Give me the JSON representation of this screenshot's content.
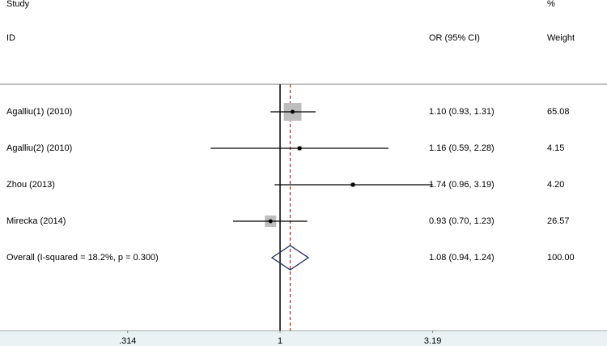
{
  "chart_data": {
    "type": "forest",
    "headers": {
      "study": "Study",
      "id": "ID",
      "estimate": "OR (95% CI)",
      "percent": "%",
      "weight": "Weight"
    },
    "rows": [
      {
        "study": "Agalliu(1) (2010)",
        "or": 1.1,
        "lower": 0.93,
        "upper": 1.31,
        "ci_label": "1.10 (0.93, 1.31)",
        "weight": 65.08,
        "weight_label": "65.08"
      },
      {
        "study": "Agalliu(2) (2010)",
        "or": 1.16,
        "lower": 0.59,
        "upper": 2.28,
        "ci_label": "1.16 (0.59, 2.28)",
        "weight": 4.15,
        "weight_label": "4.15"
      },
      {
        "study": "Zhou (2013)",
        "or": 1.74,
        "lower": 0.96,
        "upper": 3.19,
        "ci_label": "1.74 (0.96, 3.19)",
        "weight": 4.2,
        "weight_label": "4.20"
      },
      {
        "study": "Mirecka (2014)",
        "or": 0.93,
        "lower": 0.7,
        "upper": 1.23,
        "ci_label": "0.93 (0.70, 1.23)",
        "weight": 26.57,
        "weight_label": "26.57"
      }
    ],
    "overall": {
      "label": "Overall  (I-squared = 18.2%, p = 0.300)",
      "or": 1.08,
      "lower": 0.94,
      "upper": 1.24,
      "ci_label": "1.08 (0.94, 1.24)",
      "weight": 100,
      "weight_label": "100.00"
    },
    "log_x": true,
    "xlim": [
      0.119,
      12.0
    ],
    "xticks": [
      {
        "value": 0.314,
        "label": ".314"
      },
      1,
      3.19
    ],
    "reference_line": 1,
    "box_color": "#bdbdbd",
    "ci_color": "#000000",
    "diamond_color": "#1f2a5a",
    "overall_line_color": "#b22222"
  }
}
